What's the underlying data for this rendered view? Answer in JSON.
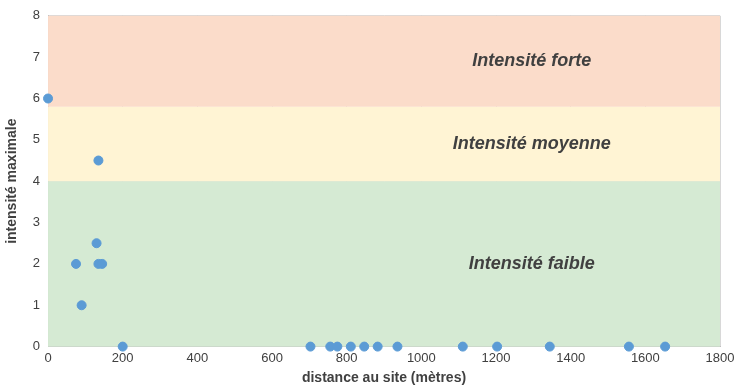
{
  "chart_data": {
    "type": "scatter",
    "x_label": "distance au site (mètres)",
    "y_label": "intensité maximale",
    "x": [
      0,
      135,
      130,
      75,
      135,
      145,
      90,
      200,
      703,
      756,
      775,
      811,
      847,
      883,
      936,
      1111,
      1203,
      1344,
      1556,
      1653
    ],
    "values": [
      6,
      4.5,
      2.5,
      2,
      2,
      2,
      1,
      0,
      0,
      0,
      0,
      0,
      0,
      0,
      0,
      0,
      0,
      0,
      0,
      0
    ],
    "color": "#5b9bd5",
    "marker": "circle",
    "xlim": [
      0,
      1800
    ],
    "xticks": [
      0,
      200,
      400,
      600,
      800,
      1000,
      1200,
      1400,
      1600,
      1800
    ],
    "ylim": [
      0,
      8
    ],
    "yticks": [
      0,
      1,
      2,
      3,
      4,
      5,
      6,
      7,
      8
    ],
    "grid": true,
    "bands": [
      {
        "from": 0,
        "to": 4,
        "label": "Intensité faible",
        "color": "#d5ead3"
      },
      {
        "from": 4,
        "to": 5.8,
        "label": "Intensité moyenne",
        "color": "#fff4d4"
      },
      {
        "from": 5.8,
        "to": 8,
        "label": "Intensité forte",
        "color": "#fbdcca"
      }
    ]
  }
}
